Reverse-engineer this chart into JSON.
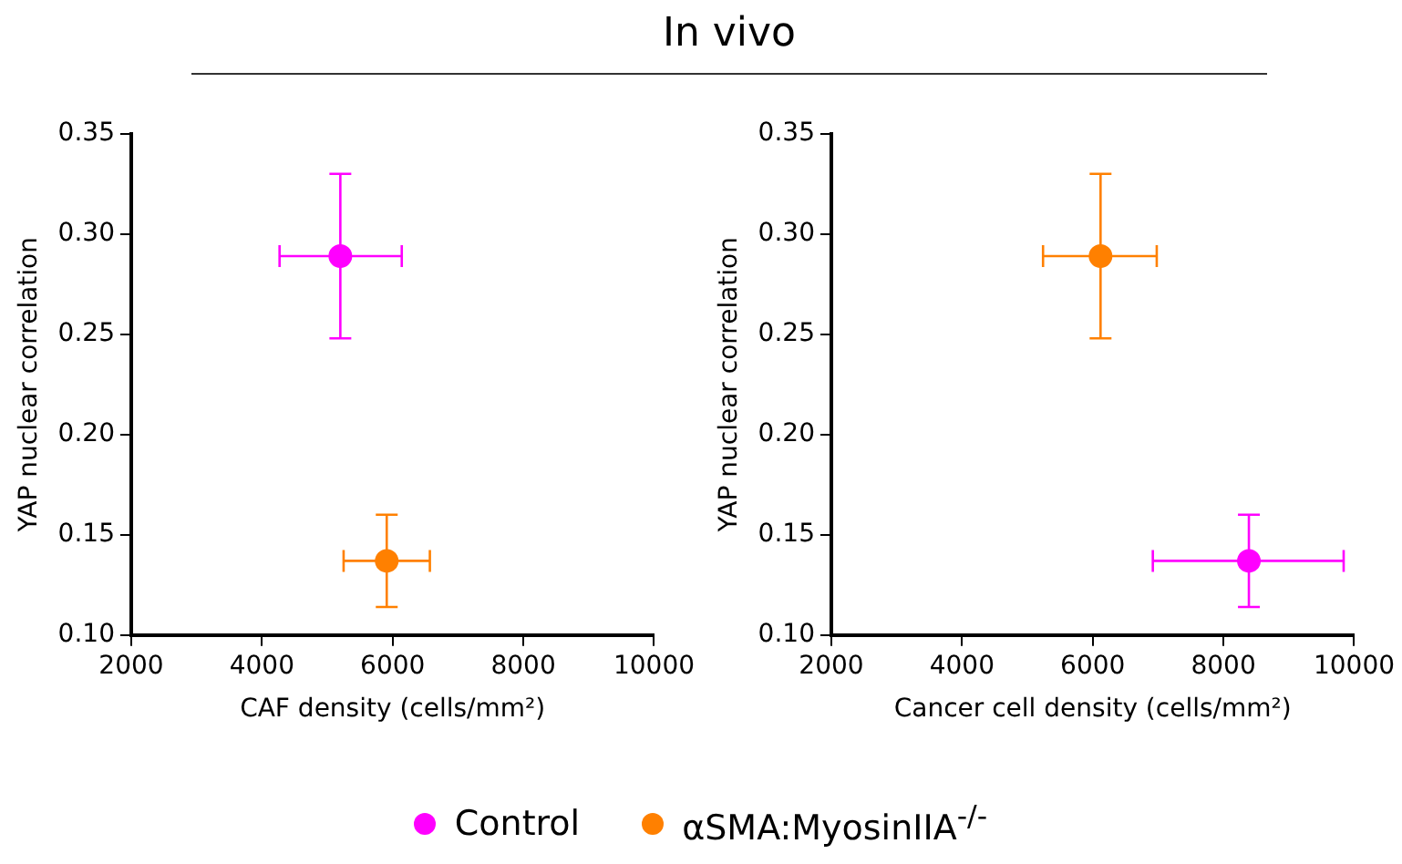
{
  "chart_data": [
    {
      "type": "scatter",
      "title": "In vivo",
      "xlabel": "CAF density (cells/mm²)",
      "ylabel": "YAP nuclear correlation",
      "xlim": [
        2000,
        10000
      ],
      "xticks": [
        2000,
        4000,
        6000,
        8000,
        10000
      ],
      "ylim": [
        0.1,
        0.35
      ],
      "yticks": [
        {
          "value": 0.1,
          "label": "0.10"
        },
        0.15,
        {
          "value": 0.2,
          "label": "0.20"
        },
        0.25,
        {
          "value": 0.3,
          "label": "0.30"
        },
        0.35
      ],
      "grid": false,
      "legend": "bottom",
      "marker": "circle",
      "series": [
        {
          "name": "Control",
          "color": "#ff00ff",
          "x": [
            5200
          ],
          "values": [
            0.289
          ],
          "errors": [
            [
              0.248,
              0.33
            ]
          ],
          "xerrors": [
            [
              4270,
              6140
            ]
          ]
        },
        {
          "name": "αSMA:MyosinIIA$^{-/-}$",
          "color": "#ff8000",
          "x": [
            5910
          ],
          "values": [
            0.137
          ],
          "errors": [
            [
              0.114,
              0.16
            ]
          ],
          "xerrors": [
            [
              5250,
              6570
            ]
          ]
        }
      ]
    },
    {
      "type": "scatter",
      "xlabel": "Cancer cell density (cells/mm²)",
      "ylabel": "YAP nuclear correlation",
      "xlim": [
        2000,
        10000
      ],
      "xticks": [
        2000,
        4000,
        6000,
        8000,
        10000
      ],
      "ylim": [
        0.1,
        0.35
      ],
      "yticks": [
        {
          "value": 0.1,
          "label": "0.10"
        },
        0.15,
        {
          "value": 0.2,
          "label": "0.20"
        },
        0.25,
        {
          "value": 0.3,
          "label": "0.30"
        },
        0.35
      ],
      "grid": false,
      "marker": "circle",
      "series": [
        {
          "color": "#ff00ff",
          "x": [
            8390
          ],
          "values": [
            0.137
          ],
          "errors": [
            [
              0.114,
              0.16
            ]
          ],
          "xerrors": [
            [
              6920,
              9840
            ]
          ]
        },
        {
          "color": "#ff8000",
          "x": [
            6120
          ],
          "values": [
            0.289
          ],
          "errors": [
            [
              0.248,
              0.33
            ]
          ],
          "xerrors": [
            [
              5240,
              6980
            ]
          ]
        }
      ]
    }
  ]
}
